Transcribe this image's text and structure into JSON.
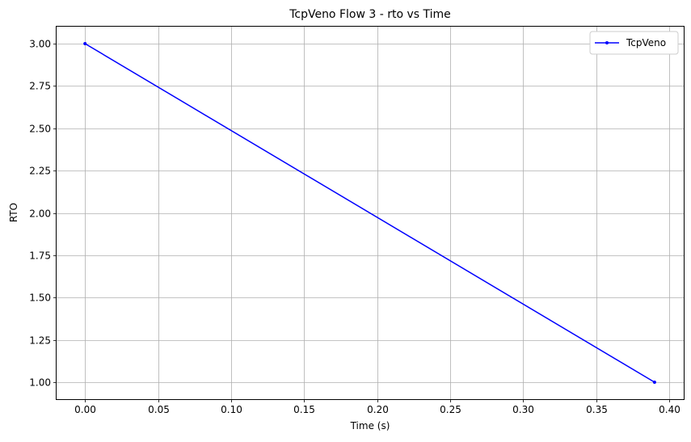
{
  "chart_data": {
    "type": "line",
    "title": "TcpVeno Flow 3 - rto vs Time",
    "xlabel": "Time (s)",
    "ylabel": "RTO",
    "xlim": [
      -0.0195,
      0.41
    ],
    "ylim": [
      0.9,
      3.1
    ],
    "xticks": [
      0.0,
      0.05,
      0.1,
      0.15,
      0.2,
      0.25,
      0.3,
      0.35,
      0.4
    ],
    "xtick_labels": [
      "0.00",
      "0.05",
      "0.10",
      "0.15",
      "0.20",
      "0.25",
      "0.30",
      "0.35",
      "0.40"
    ],
    "yticks": [
      1.0,
      1.25,
      1.5,
      1.75,
      2.0,
      2.25,
      2.5,
      2.75,
      3.0
    ],
    "ytick_labels": [
      "1.00",
      "1.25",
      "1.50",
      "1.75",
      "2.00",
      "2.25",
      "2.50",
      "2.75",
      "3.00"
    ],
    "grid": true,
    "legend_position": "top-right",
    "series": [
      {
        "name": "TcpVeno",
        "color": "#0000ff",
        "marker": "dot",
        "x": [
          0.0,
          0.39
        ],
        "y": [
          3.0,
          1.0
        ]
      }
    ]
  }
}
